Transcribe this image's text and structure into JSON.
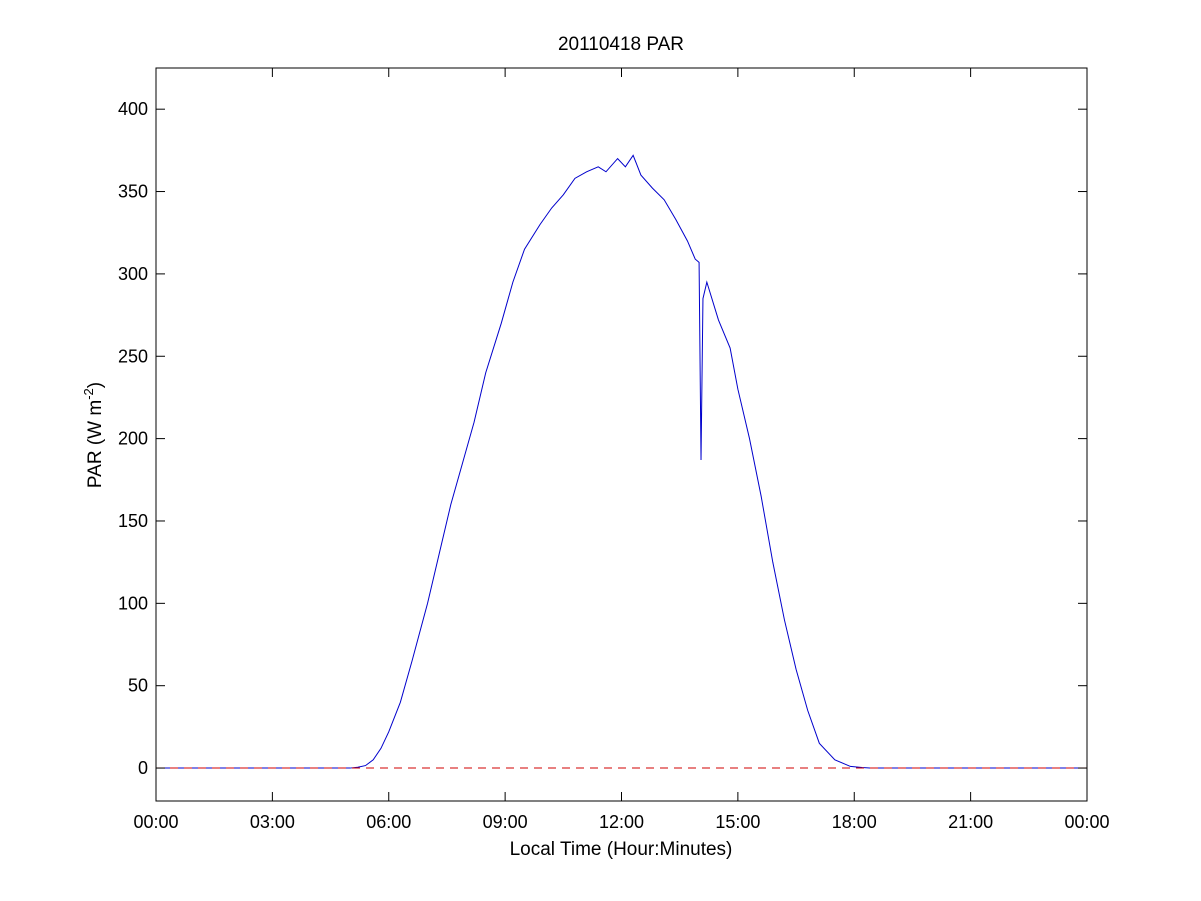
{
  "chart_data": {
    "type": "line",
    "title": "20110418 PAR",
    "xlabel": "Local Time (Hour:Minutes)",
    "ylabel": {
      "base": "PAR (W m",
      "superscript": "-2",
      "close": ")"
    },
    "x_unit": "hours",
    "xlim": [
      0,
      24
    ],
    "ylim": [
      -20,
      425
    ],
    "x_ticks": [
      0,
      3,
      6,
      9,
      12,
      15,
      18,
      21,
      24
    ],
    "x_tick_labels": [
      "00:00",
      "03:00",
      "06:00",
      "09:00",
      "12:00",
      "15:00",
      "18:00",
      "21:00",
      "00:00"
    ],
    "y_ticks": [
      0,
      50,
      100,
      150,
      200,
      250,
      300,
      350,
      400
    ],
    "y_tick_labels": [
      "0",
      "50",
      "100",
      "150",
      "200",
      "250",
      "300",
      "350",
      "400"
    ],
    "grid": false,
    "legend": "none",
    "series": [
      {
        "style": "solid",
        "color": "#0000cc",
        "x": [
          0,
          5.0,
          5.2,
          5.4,
          5.6,
          5.8,
          6.0,
          6.3,
          6.6,
          7.0,
          7.3,
          7.6,
          7.9,
          8.2,
          8.5,
          8.9,
          9.2,
          9.5,
          9.9,
          10.2,
          10.5,
          10.8,
          11.1,
          11.4,
          11.6,
          11.9,
          12.1,
          12.3,
          12.5,
          12.8,
          13.1,
          13.4,
          13.7,
          13.9,
          14.0,
          14.05,
          14.1,
          14.2,
          14.5,
          14.8,
          15.0,
          15.3,
          15.6,
          15.9,
          16.2,
          16.5,
          16.8,
          17.1,
          17.5,
          17.9,
          18.2,
          18.4,
          18.6,
          18.8,
          19.0,
          24
        ],
        "y": [
          0,
          0,
          0.5,
          1.5,
          5,
          12,
          22,
          40,
          65,
          100,
          130,
          160,
          185,
          210,
          240,
          270,
          295,
          315,
          330,
          340,
          348,
          358,
          362,
          365,
          362,
          370,
          365,
          372,
          360,
          352,
          345,
          333,
          320,
          309,
          307,
          187,
          285,
          295,
          272,
          255,
          230,
          200,
          165,
          125,
          90,
          60,
          35,
          15,
          5,
          1,
          0.3,
          0,
          0,
          0,
          0,
          0
        ]
      },
      {
        "style": "dashed",
        "color": "#d00000",
        "x": [
          0,
          24
        ],
        "y": [
          0,
          0
        ]
      }
    ]
  }
}
